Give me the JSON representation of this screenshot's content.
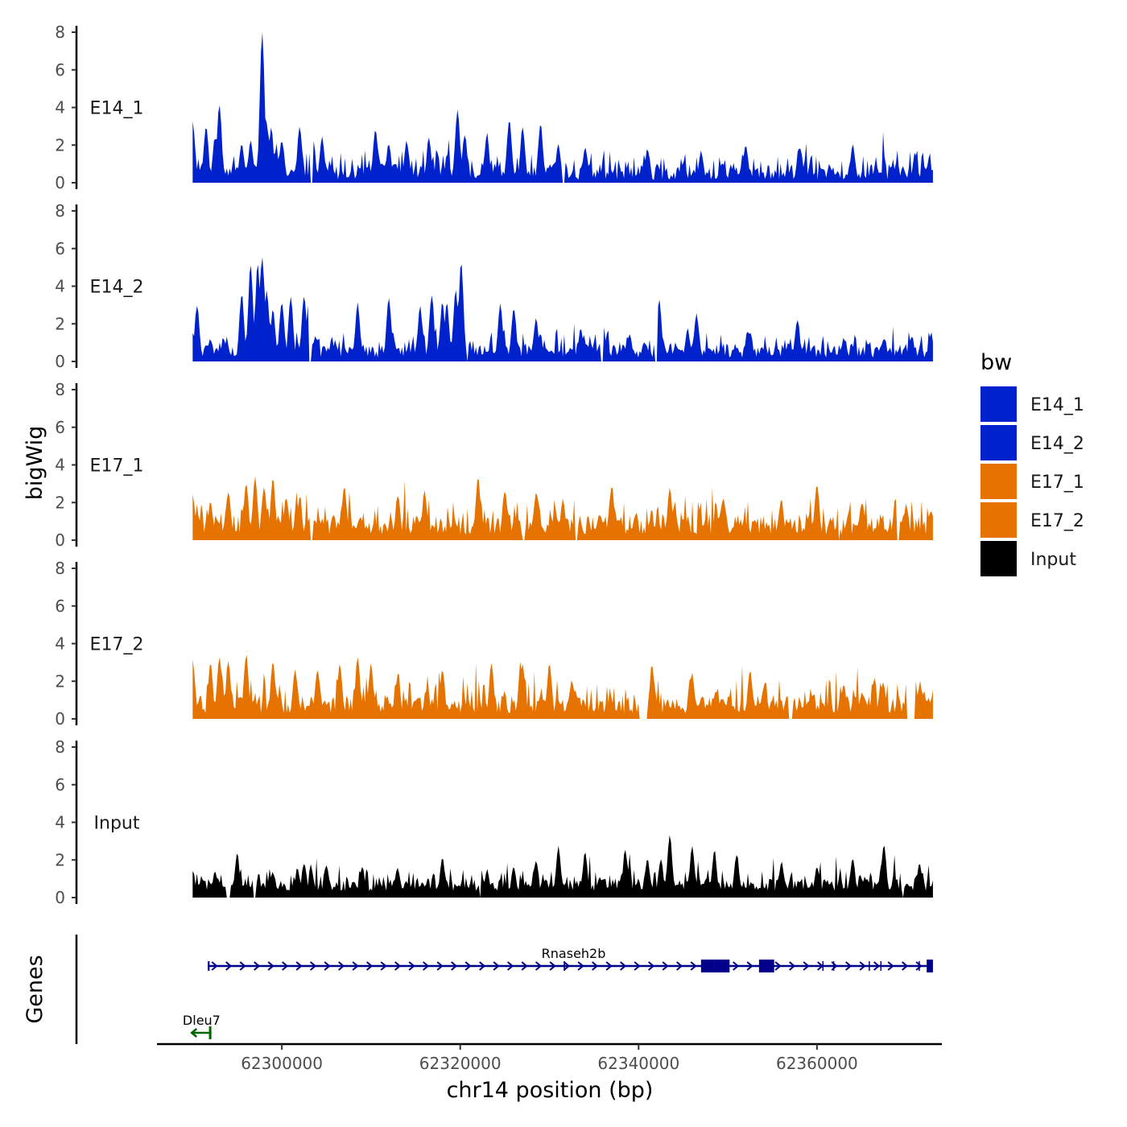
{
  "chart_data": {
    "type": "area",
    "title": "",
    "xlabel": "chr14 position (bp)",
    "ylabel": "bigWig",
    "genes_panel_label": "Genes",
    "xlim": [
      62286000,
      62374000
    ],
    "x_data_range": [
      62290000,
      62373000
    ],
    "x_ticks": [
      62300000,
      62320000,
      62340000,
      62360000
    ],
    "x_tick_labels": [
      "62300000",
      "62320000",
      "62340000",
      "62360000"
    ],
    "ylim": [
      0,
      8
    ],
    "y_ticks": [
      0,
      2,
      4,
      6,
      8
    ],
    "y_tick_labels": [
      "0",
      "2",
      "4",
      "6",
      "8"
    ],
    "legend": {
      "title": "bw",
      "entries": [
        {
          "label": "E14_1",
          "color": "#0022cc"
        },
        {
          "label": "E14_2",
          "color": "#0022cc"
        },
        {
          "label": "E17_1",
          "color": "#e67300"
        },
        {
          "label": "E17_2",
          "color": "#e67300"
        },
        {
          "label": "Input",
          "color": "#000000"
        }
      ]
    },
    "series": [
      {
        "name": "E14_1",
        "color": "#0022cc",
        "background_max": 1.6,
        "baseline": 0.15,
        "peaks": [
          [
            62290000,
            3.2
          ],
          [
            62291500,
            2.9
          ],
          [
            62292500,
            2.3
          ],
          [
            62293000,
            4.0
          ],
          [
            62295500,
            1.9
          ],
          [
            62296500,
            2.2
          ],
          [
            62297800,
            8.0
          ],
          [
            62298300,
            3.1
          ],
          [
            62298800,
            2.8
          ],
          [
            62300000,
            2.2
          ],
          [
            62302000,
            2.9
          ],
          [
            62303500,
            2.1
          ],
          [
            62304500,
            2.3
          ],
          [
            62310500,
            2.7
          ],
          [
            62312000,
            2.0
          ],
          [
            62314000,
            2.1
          ],
          [
            62316500,
            2.3
          ],
          [
            62319700,
            3.8
          ],
          [
            62320500,
            2.5
          ],
          [
            62323000,
            2.5
          ],
          [
            62325500,
            3.3
          ],
          [
            62327000,
            2.8
          ],
          [
            62329000,
            3.0
          ],
          [
            62331000,
            2.0
          ],
          [
            62334000,
            1.8
          ],
          [
            62341000,
            1.7
          ],
          [
            62347000,
            1.6
          ],
          [
            62352000,
            1.9
          ],
          [
            62358000,
            1.8
          ],
          [
            62364000,
            1.9
          ],
          [
            62371000,
            1.5
          ]
        ],
        "gaps": [
          [
            62303100,
            62303500
          ],
          [
            62331500,
            62331800
          ]
        ]
      },
      {
        "name": "E14_2",
        "color": "#0022cc",
        "background_max": 1.4,
        "baseline": 0.2,
        "peaks": [
          [
            62290000,
            1.4
          ],
          [
            62290500,
            2.9
          ],
          [
            62292000,
            1.1
          ],
          [
            62293500,
            1.0
          ],
          [
            62295500,
            3.5
          ],
          [
            62296500,
            5.0
          ],
          [
            62297300,
            5.2
          ],
          [
            62297800,
            5.5
          ],
          [
            62298300,
            3.6
          ],
          [
            62299000,
            2.6
          ],
          [
            62300000,
            3.1
          ],
          [
            62301000,
            3.4
          ],
          [
            62302500,
            3.4
          ],
          [
            62303000,
            2.9
          ],
          [
            62308500,
            3.0
          ],
          [
            62312000,
            3.3
          ],
          [
            62315500,
            2.8
          ],
          [
            62316800,
            3.5
          ],
          [
            62318000,
            3.0
          ],
          [
            62318500,
            3.0
          ],
          [
            62319500,
            3.7
          ],
          [
            62320100,
            5.2
          ],
          [
            62324500,
            3.0
          ],
          [
            62326000,
            2.8
          ],
          [
            62328500,
            2.2
          ],
          [
            62333500,
            1.6
          ],
          [
            62336000,
            2.0
          ],
          [
            62339000,
            1.4
          ],
          [
            62342300,
            3.2
          ],
          [
            62345500,
            1.6
          ],
          [
            62346500,
            2.4
          ],
          [
            62352500,
            1.5
          ],
          [
            62357800,
            2.2
          ],
          [
            62363000,
            1.1
          ],
          [
            62367500,
            1.1
          ],
          [
            62372800,
            1.4
          ]
        ],
        "gaps": [
          [
            62303000,
            62303300
          ],
          [
            62320700,
            62320900
          ],
          [
            62335800,
            62336000
          ],
          [
            62341800,
            62342100
          ]
        ]
      },
      {
        "name": "E17_1",
        "color": "#e67300",
        "background_max": 1.9,
        "baseline": 0.3,
        "peaks": [
          [
            62290000,
            2.3
          ],
          [
            62292000,
            1.9
          ],
          [
            62294000,
            2.5
          ],
          [
            62296000,
            3.0
          ],
          [
            62297000,
            3.2
          ],
          [
            62298000,
            2.8
          ],
          [
            62299000,
            3.2
          ],
          [
            62300500,
            2.2
          ],
          [
            62302000,
            2.1
          ],
          [
            62307000,
            2.7
          ],
          [
            62313000,
            2.3
          ],
          [
            62316000,
            2.5
          ],
          [
            62322000,
            3.2
          ],
          [
            62325000,
            2.6
          ],
          [
            62328500,
            2.5
          ],
          [
            62331500,
            2.1
          ],
          [
            62337000,
            2.8
          ],
          [
            62343500,
            2.7
          ],
          [
            62349500,
            2.1
          ],
          [
            62356000,
            2.1
          ],
          [
            62360000,
            2.9
          ],
          [
            62365000,
            1.9
          ],
          [
            62370000,
            1.8
          ],
          [
            62372800,
            1.5
          ]
        ],
        "gaps": [
          [
            62303200,
            62303500
          ],
          [
            62327000,
            62327300
          ],
          [
            62332800,
            62333100
          ],
          [
            62362400,
            62362600
          ],
          [
            62369000,
            62369300
          ]
        ]
      },
      {
        "name": "E17_2",
        "color": "#e67300",
        "background_max": 1.8,
        "baseline": 0.3,
        "peaks": [
          [
            62290000,
            3.0
          ],
          [
            62292000,
            2.8
          ],
          [
            62293000,
            3.2
          ],
          [
            62294000,
            3.0
          ],
          [
            62296000,
            3.3
          ],
          [
            62299000,
            2.9
          ],
          [
            62301500,
            2.5
          ],
          [
            62304000,
            2.6
          ],
          [
            62306500,
            2.8
          ],
          [
            62308500,
            3.2
          ],
          [
            62310000,
            2.8
          ],
          [
            62313000,
            2.3
          ],
          [
            62318000,
            2.6
          ],
          [
            62323500,
            2.8
          ],
          [
            62327000,
            2.8
          ],
          [
            62330000,
            2.9
          ],
          [
            62332500,
            2.0
          ],
          [
            62341500,
            2.8
          ],
          [
            62346000,
            2.3
          ],
          [
            62352500,
            2.5
          ],
          [
            62357000,
            1.8
          ],
          [
            62363000,
            1.7
          ],
          [
            62367500,
            1.6
          ],
          [
            62371500,
            1.6
          ]
        ],
        "gaps": [
          [
            62340000,
            62341000
          ],
          [
            62356800,
            62357200
          ],
          [
            62370000,
            62371000
          ]
        ]
      },
      {
        "name": "Input",
        "color": "#000000",
        "background_max": 1.2,
        "baseline": 0.35,
        "peaks": [
          [
            62290000,
            1.4
          ],
          [
            62292500,
            1.2
          ],
          [
            62295000,
            2.2
          ],
          [
            62299000,
            1.3
          ],
          [
            62302500,
            1.8
          ],
          [
            62305000,
            1.7
          ],
          [
            62309000,
            1.6
          ],
          [
            62313000,
            1.5
          ],
          [
            62318000,
            2.1
          ],
          [
            62323000,
            1.4
          ],
          [
            62326000,
            1.5
          ],
          [
            62328500,
            1.9
          ],
          [
            62331000,
            2.6
          ],
          [
            62334000,
            2.3
          ],
          [
            62338500,
            2.5
          ],
          [
            62341000,
            2.0
          ],
          [
            62342500,
            2.0
          ],
          [
            62343500,
            3.3
          ],
          [
            62346000,
            2.6
          ],
          [
            62348500,
            2.4
          ],
          [
            62351000,
            2.2
          ],
          [
            62356000,
            1.8
          ],
          [
            62360000,
            1.6
          ],
          [
            62364000,
            2.0
          ],
          [
            62367500,
            2.7
          ],
          [
            62371500,
            1.8
          ]
        ],
        "gaps": [
          [
            62293800,
            62294200
          ],
          [
            62296800,
            62297100
          ],
          [
            62322200,
            62322400
          ],
          [
            62343200,
            62343300
          ],
          [
            62350500,
            62350600
          ],
          [
            62369600,
            62369800
          ]
        ]
      }
    ],
    "genes": [
      {
        "name": "Rnaseh2b",
        "strand": "+",
        "color": "#00008b",
        "start": 62291700,
        "end": 62373000,
        "exons": [
          [
            62291700,
            62291900
          ],
          [
            62331600,
            62331750
          ],
          [
            62347000,
            62348500
          ],
          [
            62348500,
            62350200
          ],
          [
            62353500,
            62355200
          ],
          [
            62360600,
            62360700
          ],
          [
            62361800,
            62361900
          ],
          [
            62365800,
            62365900
          ],
          [
            62367100,
            62367200
          ],
          [
            62371400,
            62371500
          ],
          [
            62372300,
            62373000
          ]
        ]
      },
      {
        "name": "Dleu7",
        "strand": "-",
        "color": "#006400",
        "start": 62289900,
        "end": 62292100,
        "exons": []
      }
    ]
  }
}
